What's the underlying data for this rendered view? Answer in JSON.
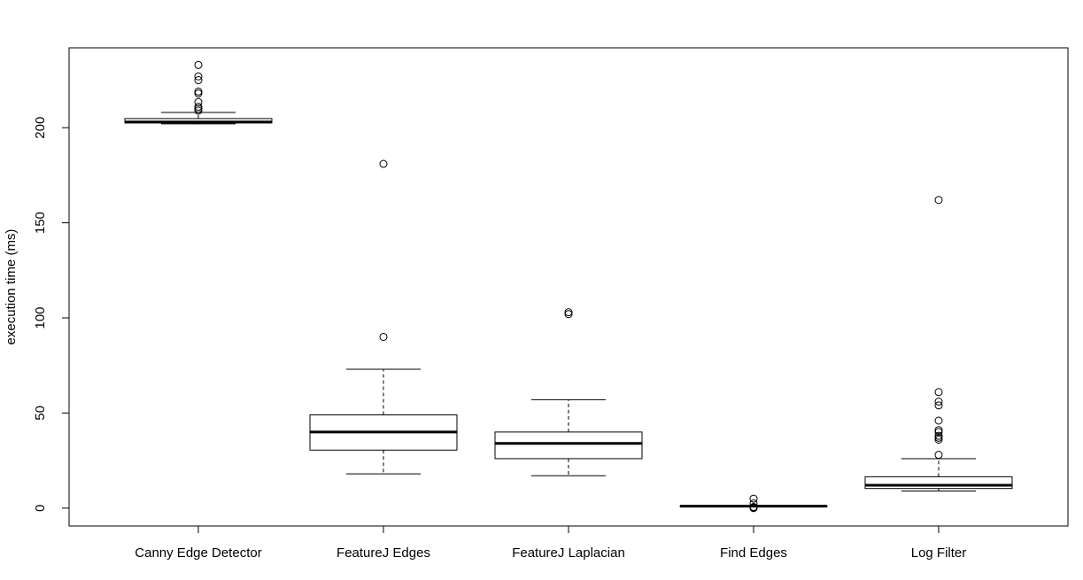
{
  "chart_data": {
    "type": "boxplot",
    "title": "",
    "xlabel": "",
    "ylabel": "execution time (ms)",
    "ylim": [
      -9.4,
      242
    ],
    "yticks": [
      0,
      50,
      100,
      150,
      200
    ],
    "grid": false,
    "categories": [
      "Canny Edge Detector",
      "FeatureJ Edges",
      "FeatureJ Laplacian",
      "Find Edges",
      "Log Filter"
    ],
    "boxes": [
      {
        "lower_whisker": 202,
        "q1": 202.5,
        "median": 203,
        "q3": 204.8,
        "upper_whisker": 208,
        "outliers": [
          209,
          210,
          211,
          213.5,
          218,
          219,
          225,
          227,
          233
        ]
      },
      {
        "lower_whisker": 18,
        "q1": 30.5,
        "median": 40,
        "q3": 49,
        "upper_whisker": 73,
        "outliers": [
          90,
          181
        ]
      },
      {
        "lower_whisker": 17,
        "q1": 26,
        "median": 34,
        "q3": 40,
        "upper_whisker": 57,
        "outliers": [
          102,
          103
        ]
      },
      {
        "lower_whisker": 0.8,
        "q1": 0.9,
        "median": 1.0,
        "q3": 1.1,
        "upper_whisker": 1.2,
        "outliers": [
          0,
          0.3,
          0.6,
          2.5,
          5
        ]
      },
      {
        "lower_whisker": 9,
        "q1": 10.3,
        "median": 12,
        "q3": 16.5,
        "upper_whisker": 26,
        "outliers": [
          28,
          36,
          37,
          38,
          40,
          41,
          46,
          54,
          56,
          61,
          162
        ]
      }
    ]
  }
}
